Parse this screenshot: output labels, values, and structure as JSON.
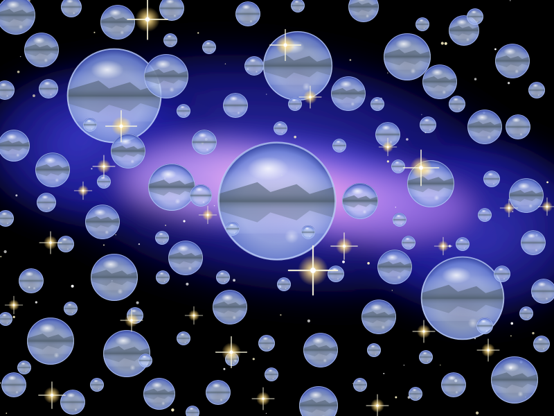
{
  "scene": {
    "subject": "bubbles-reflecting-lakeside-trees-over-nebula",
    "colors": {
      "background": "#000000",
      "nebula_outer": "#1a1aa8",
      "nebula_mid": "#5a55e6",
      "nebula_core": "#f0a8f0",
      "bubble_highlight": "#ffffff",
      "bubble_body": "#a9c2f2",
      "bubble_rim": "#2a3a9a",
      "reflection_trees": "#4a5a6a",
      "star_glow": "#ffe8a0"
    }
  }
}
